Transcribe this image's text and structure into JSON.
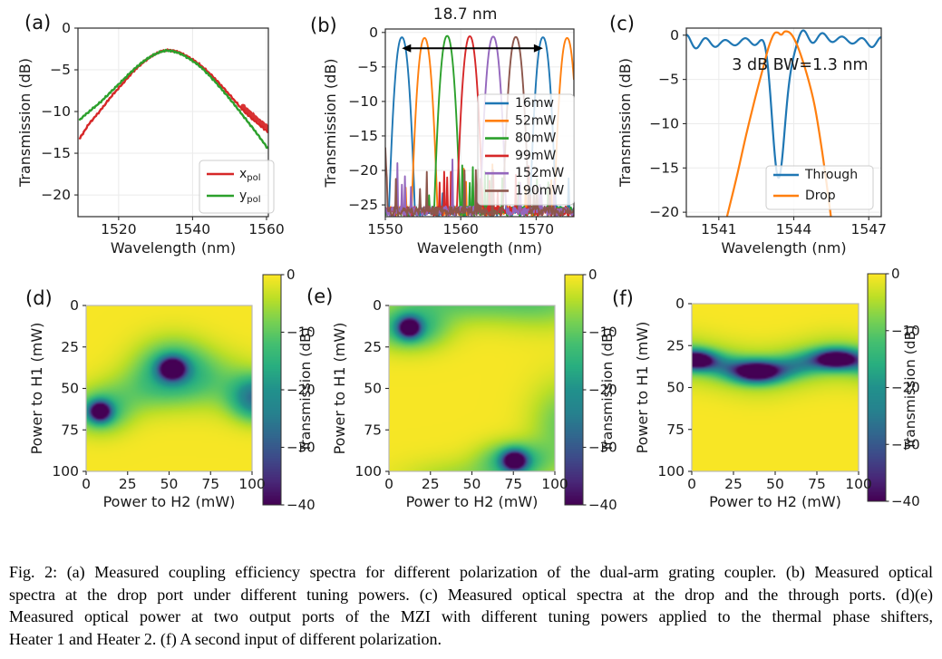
{
  "caption_lines": [
    "Fig. 2: (a) Measured coupling efficiency spectra for different polarization of the dual-arm grating coupler. (b) Measured optical",
    "spectra at the drop port under different tuning powers. (c) Measured optical spectra at the drop and the through ports. (d)(e)",
    "Measured optical power at two output ports of the MZI with different tuning powers applied to the thermal phase shifters,",
    "Heater 1 and Heater 2. (f) A second input of different polarization."
  ],
  "chart_data": [
    {
      "id": "a",
      "panel_label": "(a)",
      "type": "line",
      "xlabel": "Wavelength (nm)",
      "ylabel": "Transmission (dB)",
      "xlim": [
        1509,
        1560.5
      ],
      "ylim": [
        -22.6,
        0
      ],
      "xticks": [
        1520,
        1540,
        1560
      ],
      "yticks": [
        0,
        -5,
        -10,
        -15,
        -20
      ],
      "grid": true,
      "legend": [
        {
          "label": "x",
          "subscript": "pol",
          "color": "#d62728"
        },
        {
          "label": "y",
          "subscript": "pol",
          "color": "#2ca02c"
        }
      ],
      "series": [
        {
          "name": "x_pol",
          "color": "#d62728",
          "width": 2.4,
          "jitter": 0.13,
          "points": [
            [
              1509.5,
              -13.2
            ],
            [
              1512,
              -11.5
            ],
            [
              1515,
              -9.9
            ],
            [
              1518,
              -8.2
            ],
            [
              1521,
              -6.7
            ],
            [
              1524,
              -5.2
            ],
            [
              1527,
              -4.0
            ],
            [
              1530,
              -3.1
            ],
            [
              1533,
              -2.65
            ],
            [
              1536,
              -2.85
            ],
            [
              1539,
              -3.5
            ],
            [
              1542,
              -4.4
            ],
            [
              1545,
              -5.6
            ],
            [
              1548,
              -7.0
            ],
            [
              1551,
              -8.5
            ],
            [
              1554,
              -10.0
            ],
            [
              1557,
              -11.2
            ],
            [
              1560.3,
              -12.4
            ]
          ],
          "thick_overlay": {
            "x1": 1553.5,
            "x2": 1560.3,
            "dy": 0.45,
            "width": 4.5
          }
        },
        {
          "name": "y_pol",
          "color": "#2ca02c",
          "width": 2.4,
          "jitter": 0.13,
          "points": [
            [
              1509.5,
              -11.0
            ],
            [
              1512,
              -10.0
            ],
            [
              1515,
              -8.9
            ],
            [
              1518,
              -7.6
            ],
            [
              1521,
              -6.3
            ],
            [
              1524,
              -5.0
            ],
            [
              1527,
              -3.9
            ],
            [
              1530,
              -3.1
            ],
            [
              1533,
              -2.7
            ],
            [
              1536,
              -2.95
            ],
            [
              1539,
              -3.65
            ],
            [
              1542,
              -4.6
            ],
            [
              1545,
              -5.9
            ],
            [
              1548,
              -7.4
            ],
            [
              1551,
              -9.0
            ],
            [
              1554,
              -10.7
            ],
            [
              1557,
              -12.4
            ],
            [
              1560.3,
              -14.4
            ]
          ]
        }
      ]
    },
    {
      "id": "b",
      "panel_label": "(b)",
      "type": "peaks",
      "xlabel": "Wavelength (nm)",
      "ylabel": "Transmission (dB)",
      "xlim": [
        1550,
        1575
      ],
      "ylim": [
        -26.7,
        0.5
      ],
      "xticks": [
        1550,
        1560,
        1570
      ],
      "yticks": [
        0,
        -5,
        -10,
        -15,
        -20,
        -25
      ],
      "grid": true,
      "annotation_fsr": {
        "text": "18.7 nm",
        "x1": 1552.2,
        "x2": 1570.9,
        "y": -2.3
      },
      "peak_halfwidth_10db": 1.13,
      "peak_exponent": 2.2,
      "noise_floor_mean": -25.2,
      "noise_floor_spread": 1.4,
      "series": [
        {
          "name": "16mw",
          "color": "#1f77b4",
          "peaks": [
            1552.2,
            1570.9
          ],
          "top": -0.7
        },
        {
          "name": "52mW",
          "color": "#ff7f0e",
          "peaks": [
            1555.2,
            1574.1
          ],
          "top": -0.8
        },
        {
          "name": "80mW",
          "color": "#2ca02c",
          "peaks": [
            1558.2
          ],
          "top": -0.5
        },
        {
          "name": "99mW",
          "color": "#d62728",
          "peaks": [
            1561.2
          ],
          "top": -0.55
        },
        {
          "name": "152mW",
          "color": "#9467bd",
          "peaks": [
            1564.3
          ],
          "top": -0.6
        },
        {
          "name": "190mW",
          "color": "#8c564b",
          "peaks": [
            1548.6,
            1567.3
          ],
          "top": -0.65
        }
      ],
      "legend": [
        {
          "label": "16mw",
          "color": "#1f77b4"
        },
        {
          "label": "52mW",
          "color": "#ff7f0e"
        },
        {
          "label": "80mW",
          "color": "#2ca02c"
        },
        {
          "label": "99mW",
          "color": "#d62728"
        },
        {
          "label": "152mW",
          "color": "#9467bd"
        },
        {
          "label": "190mW",
          "color": "#8c564b"
        }
      ]
    },
    {
      "id": "c",
      "panel_label": "(c)",
      "type": "line",
      "xlabel": "Wavelength (nm)",
      "ylabel": "Transmission (dB)",
      "xlim": [
        1539.7,
        1547.5
      ],
      "ylim": [
        -20.5,
        0.8
      ],
      "xticks": [
        1541,
        1544,
        1547
      ],
      "yticks": [
        0,
        -5,
        -10,
        -15,
        -20
      ],
      "grid": true,
      "annotation": {
        "text": "3 dB BW=1.3 nm",
        "x": 1544.25,
        "y": -3.9
      },
      "legend": [
        {
          "label": "Through",
          "color": "#1f77b4"
        },
        {
          "label": "Drop",
          "color": "#ff7f0e"
        }
      ],
      "series": [
        {
          "name": "Through",
          "color": "#1f77b4",
          "width": 2.2,
          "generator": {
            "kind": "ripple_notch",
            "mean": -0.55,
            "ripple_amp": 0.72,
            "period": 0.78,
            "notch_center": 1543.42,
            "notch_depth": 15.8,
            "notch_sigma": 0.26
          }
        },
        {
          "name": "Drop",
          "color": "#ff7f0e",
          "width": 2.2,
          "points": [
            [
              1541.3,
              -20.8
            ],
            [
              1541.7,
              -16.2
            ],
            [
              1542.1,
              -11.2
            ],
            [
              1542.5,
              -6.6
            ],
            [
              1542.8,
              -3.4
            ],
            [
              1543.0,
              -1.3
            ],
            [
              1543.2,
              0.1
            ],
            [
              1543.35,
              0.3
            ],
            [
              1543.5,
              0.05
            ],
            [
              1543.65,
              0.42
            ],
            [
              1543.85,
              0.25
            ],
            [
              1544.05,
              -0.6
            ],
            [
              1544.3,
              -2.4
            ],
            [
              1544.6,
              -5.2
            ],
            [
              1544.85,
              -8.2
            ],
            [
              1545.1,
              -12.5
            ],
            [
              1545.3,
              -16.5
            ],
            [
              1545.5,
              -20.8
            ]
          ]
        }
      ]
    },
    {
      "id": "d",
      "panel_label": "(d)",
      "type": "heatmap",
      "xlabel": "Power to H2 (mW)",
      "ylabel": "Power to H1 (mW)",
      "xlim": [
        0,
        100
      ],
      "ylim": [
        0,
        100
      ],
      "y_increases_downward": true,
      "xticks": [
        0,
        25,
        50,
        75,
        100
      ],
      "yticks": [
        0,
        25,
        50,
        75,
        100
      ],
      "colormap": "viridis",
      "value_range": [
        -40,
        0
      ],
      "base_value": -0.4,
      "colorbar": {
        "label": "Transmission (dB)",
        "ticks": [
          0,
          -10,
          -20,
          -30,
          -40
        ]
      },
      "minima": [
        {
          "h2": 52,
          "h1": 38,
          "approx_db": -40
        },
        {
          "h2": 8,
          "h1": 64,
          "approx_db": -40
        },
        {
          "h2": 100,
          "h1": 56,
          "approx_db": -22
        }
      ],
      "field_components": [
        {
          "kind": "gauss",
          "cx": 52,
          "cy": 38,
          "amp": 46,
          "sx": 5.5,
          "sy": 4.5
        },
        {
          "kind": "gauss",
          "cx": 52,
          "cy": 38,
          "amp": 16,
          "sx": 15,
          "sy": 12
        },
        {
          "kind": "gauss",
          "cx": 8,
          "cy": 64,
          "amp": 46,
          "sx": 4.5,
          "sy": 4
        },
        {
          "kind": "gauss",
          "cx": 8,
          "cy": 64,
          "amp": 14,
          "sx": 12,
          "sy": 9
        },
        {
          "kind": "gauss",
          "cx": 104,
          "cy": 56,
          "amp": 26,
          "sx": 11,
          "sy": 9
        },
        {
          "kind": "gauss",
          "cx": 77,
          "cy": 46,
          "amp": 7,
          "sx": 20,
          "sy": 12
        },
        {
          "kind": "gauss",
          "cx": 30,
          "cy": 52,
          "amp": 6,
          "sx": 16,
          "sy": 10
        }
      ]
    },
    {
      "id": "e",
      "panel_label": "(e)",
      "type": "heatmap",
      "xlabel": "Power to H2 (mW)",
      "ylabel": "Power to H1 (mW)",
      "xlim": [
        0,
        100
      ],
      "ylim": [
        0,
        100
      ],
      "y_increases_downward": true,
      "xticks": [
        0,
        25,
        50,
        75,
        100
      ],
      "yticks": [
        0,
        25,
        50,
        75,
        100
      ],
      "colormap": "viridis",
      "value_range": [
        -40,
        0
      ],
      "base_value": -0.4,
      "colorbar": {
        "label": "Transmission (dB)",
        "ticks": [
          0,
          -10,
          -20,
          -30,
          -40
        ]
      },
      "minima": [
        {
          "h2": 12,
          "h1": 13,
          "approx_db": -40
        },
        {
          "h2": 76,
          "h1": 94,
          "approx_db": -40
        }
      ],
      "field_components": [
        {
          "kind": "gauss",
          "cx": 12,
          "cy": 13,
          "amp": 46,
          "sx": 4.5,
          "sy": 4
        },
        {
          "kind": "gauss",
          "cx": 12,
          "cy": 13,
          "amp": 16,
          "sx": 15,
          "sy": 9
        },
        {
          "kind": "gauss",
          "cx": 45,
          "cy": -5,
          "amp": 10,
          "sx": 28,
          "sy": 10
        },
        {
          "kind": "gauss",
          "cx": 95,
          "cy": -4,
          "amp": 8,
          "sx": 22,
          "sy": 12
        },
        {
          "kind": "gauss",
          "cx": 76,
          "cy": 94,
          "amp": 46,
          "sx": 5,
          "sy": 4
        },
        {
          "kind": "gauss",
          "cx": 76,
          "cy": 94,
          "amp": 15,
          "sx": 14,
          "sy": 8
        },
        {
          "kind": "gauss",
          "cx": 106,
          "cy": 72,
          "amp": 9,
          "sx": 14,
          "sy": 18
        },
        {
          "kind": "gauss",
          "cx": 45,
          "cy": 106,
          "amp": 6,
          "sx": 25,
          "sy": 9
        }
      ]
    },
    {
      "id": "f",
      "panel_label": "(f)",
      "type": "heatmap",
      "xlabel": "Power to H2 (mW)",
      "ylabel": "Power to H1 (mW)",
      "xlim": [
        0,
        100
      ],
      "ylim": [
        0,
        100
      ],
      "y_increases_downward": true,
      "xticks": [
        0,
        25,
        50,
        75,
        100
      ],
      "yticks": [
        0,
        25,
        50,
        75,
        100
      ],
      "colormap": "viridis",
      "value_range": [
        -40,
        0
      ],
      "base_value": -0.3,
      "colorbar": {
        "label": "Transmission (dB)",
        "ticks": [
          0,
          -10,
          -20,
          -30,
          -40
        ]
      },
      "minima": [
        {
          "h2": 0,
          "h1": 33,
          "approx_db": -40
        },
        {
          "h2": 39,
          "h1": 40,
          "approx_db": -40
        },
        {
          "h2": 87,
          "h1": 33,
          "approx_db": -40
        }
      ],
      "field_components": [
        {
          "kind": "band",
          "cy0": 36.5,
          "wave_amp": 3.5,
          "period": 95,
          "xref": 40,
          "amp": 16,
          "sy": 4.5
        },
        {
          "kind": "band",
          "cy0": 36.5,
          "wave_amp": 3.5,
          "period": 95,
          "xref": 40,
          "amp": 8,
          "sy": 10
        },
        {
          "kind": "gauss",
          "cx": 2,
          "cy": 33.5,
          "amp": 38,
          "sx": 7,
          "sy": 3.5
        },
        {
          "kind": "gauss",
          "cx": 39,
          "cy": 40.5,
          "amp": 38,
          "sx": 9,
          "sy": 4
        },
        {
          "kind": "gauss",
          "cx": 87,
          "cy": 33,
          "amp": 38,
          "sx": 8,
          "sy": 3.5
        }
      ]
    }
  ]
}
